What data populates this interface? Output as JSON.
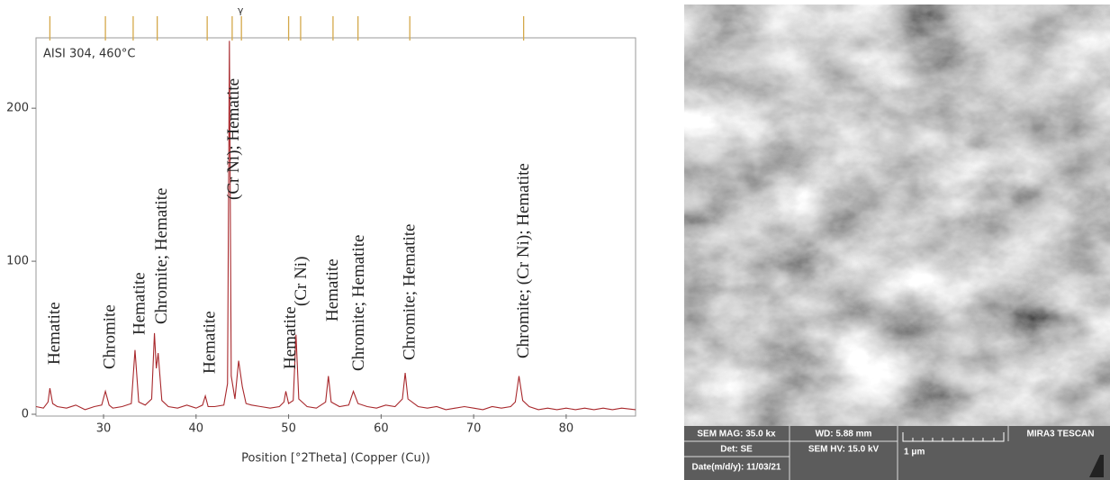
{
  "chart_data": {
    "type": "line",
    "subtitle": "AISI 304, 460°C",
    "x_label": "Position [°2Theta] (Copper (Cu))",
    "xlim": [
      22.7,
      87.5
    ],
    "ylim": [
      0,
      246
    ],
    "xticks": [
      30,
      40,
      50,
      60,
      70,
      80
    ],
    "yticks": [
      0,
      100,
      200
    ],
    "color": "#a8282c",
    "reference_color": "#d4a84a",
    "reference_lines": [
      24.2,
      30.2,
      33.2,
      35.8,
      41.2,
      43.9,
      44.9,
      50.0,
      51.3,
      54.8,
      57.5,
      63.1,
      75.4
    ],
    "reference_label": {
      "text": "γ",
      "x": 44.8
    },
    "x": [
      22.7,
      23.5,
      24.0,
      24.2,
      24.5,
      25,
      26,
      27,
      28,
      29,
      29.8,
      30.2,
      30.6,
      31,
      32,
      33,
      33.4,
      33.8,
      34.5,
      35.2,
      35.5,
      35.7,
      35.9,
      36.3,
      37,
      38,
      39,
      40,
      40.7,
      41.0,
      41.3,
      42,
      43,
      43.4,
      43.6,
      43.8,
      44.2,
      44.6,
      45.0,
      45.4,
      46,
      47,
      48,
      49,
      49.5,
      49.7,
      50,
      50.5,
      50.8,
      51.1,
      52,
      53,
      54,
      54.3,
      54.6,
      55.5,
      56.5,
      57,
      57.5,
      58.5,
      59.5,
      60.5,
      61.5,
      62.3,
      62.6,
      62.9,
      64,
      65,
      66,
      67,
      68,
      69,
      70,
      71,
      72,
      73,
      74,
      74.5,
      74.9,
      75.3,
      76,
      77,
      78,
      79,
      80,
      81,
      82,
      83,
      84,
      85,
      86,
      87.5
    ],
    "values": [
      5,
      4,
      8,
      17,
      7,
      5,
      4,
      6,
      3,
      5,
      6,
      15,
      6,
      4,
      5,
      7,
      42,
      8,
      6,
      10,
      53,
      30,
      40,
      9,
      5,
      4,
      6,
      4,
      6,
      12,
      5,
      5,
      6,
      20,
      244,
      25,
      10,
      35,
      18,
      7,
      6,
      5,
      4,
      5,
      8,
      15,
      7,
      9,
      52,
      10,
      5,
      4,
      8,
      25,
      8,
      5,
      6,
      15,
      7,
      5,
      4,
      6,
      5,
      10,
      27,
      10,
      5,
      4,
      5,
      3,
      4,
      5,
      4,
      3,
      5,
      4,
      5,
      8,
      25,
      9,
      5,
      3,
      4,
      3,
      4,
      3,
      4,
      3,
      4,
      3,
      4,
      3
    ],
    "annotations": [
      {
        "text": "Hematite",
        "x": 24.2
      },
      {
        "text": "Chromite",
        "x": 30.2
      },
      {
        "text": "Hematite",
        "x": 33.4
      },
      {
        "text": "Chromite; Hematite",
        "x": 35.8
      },
      {
        "text": "Hematite",
        "x": 41.0
      },
      {
        "text": "(Cr Ni); Hematite",
        "x": 43.6
      },
      {
        "text": "Hematite",
        "x": 49.7
      },
      {
        "text": "(Cr Ni)",
        "x": 50.9
      },
      {
        "text": "Hematite",
        "x": 54.3
      },
      {
        "text": "Chromite; Hematite",
        "x": 57.1
      },
      {
        "text": "Chromite; Hematite",
        "x": 62.6
      },
      {
        "text": "Chromite; (Cr Ni); Hematite",
        "x": 74.9
      }
    ]
  },
  "sem_image": {
    "mag": "SEM MAG: 35.0 kx",
    "wd": "WD: 5.88 mm",
    "brand": "MIRA3 TESCAN",
    "det": "Det: SE",
    "hv": "SEM HV: 15.0 kV",
    "scale": "1 μm",
    "date": "Date(m/d/y): 11/03/21"
  }
}
